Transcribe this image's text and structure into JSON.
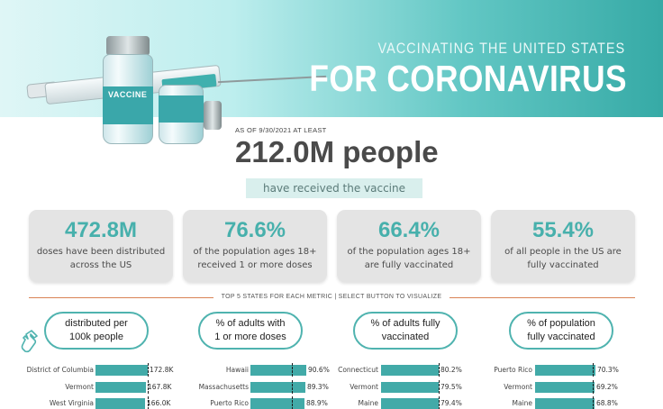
{
  "header": {
    "title_top": "VACCINATING THE UNITED STATES",
    "title_main": "FOR CORONAVIRUS",
    "vial_label": "VACCINE"
  },
  "summary": {
    "as_of": "AS OF 9/30/2021 AT LEAST",
    "people": "212.0M people",
    "received": "have received the vaccine"
  },
  "stats": [
    {
      "value": "472.8M",
      "desc": "doses have been distributed across the US"
    },
    {
      "value": "76.6%",
      "desc": "of the population ages 18+ received 1 or more doses"
    },
    {
      "value": "66.4%",
      "desc": "of the population ages 18+ are fully vaccinated"
    },
    {
      "value": "55.4%",
      "desc": "of all people in the US are fully vaccinated"
    }
  ],
  "section_label": "TOP 5 STATES FOR EACH METRIC  |  SELECT BUTTON TO VISUALIZE",
  "metrics": [
    {
      "button": "distributed per\n100k people",
      "rows": [
        {
          "state": "District of Columbia",
          "value": "172.8K",
          "fraction": 0.96
        },
        {
          "state": "Vermont",
          "value": "167.8K",
          "fraction": 0.93
        },
        {
          "state": "West Virginia",
          "value": "166.0K",
          "fraction": 0.92
        }
      ]
    },
    {
      "button": "% of adults with\n1 or more doses",
      "rows": [
        {
          "state": "Hawaii",
          "value": "90.6%",
          "fraction": 0.906
        },
        {
          "state": "Massachusetts",
          "value": "89.3%",
          "fraction": 0.893
        },
        {
          "state": "Puerto Rico",
          "value": "88.9%",
          "fraction": 0.889
        }
      ]
    },
    {
      "button": "% of adults fully\nvaccinated",
      "rows": [
        {
          "state": "Connecticut",
          "value": "80.2%",
          "fraction": 0.802
        },
        {
          "state": "Vermont",
          "value": "79.5%",
          "fraction": 0.795
        },
        {
          "state": "Maine",
          "value": "79.4%",
          "fraction": 0.794
        }
      ]
    },
    {
      "button": "% of population\nfully vaccinated",
      "rows": [
        {
          "state": "Puerto Rico",
          "value": "70.3%",
          "fraction": 0.703
        },
        {
          "state": "Vermont",
          "value": "69.2%",
          "fraction": 0.692
        },
        {
          "state": "Maine",
          "value": "68.8%",
          "fraction": 0.688
        }
      ]
    }
  ],
  "colors": {
    "accent": "#42aaa8",
    "stat_value": "#47b0ac",
    "divider": "#d98255",
    "card": "#e4e4e4"
  },
  "icons": {
    "pointer": "hand-pointer-icon"
  }
}
